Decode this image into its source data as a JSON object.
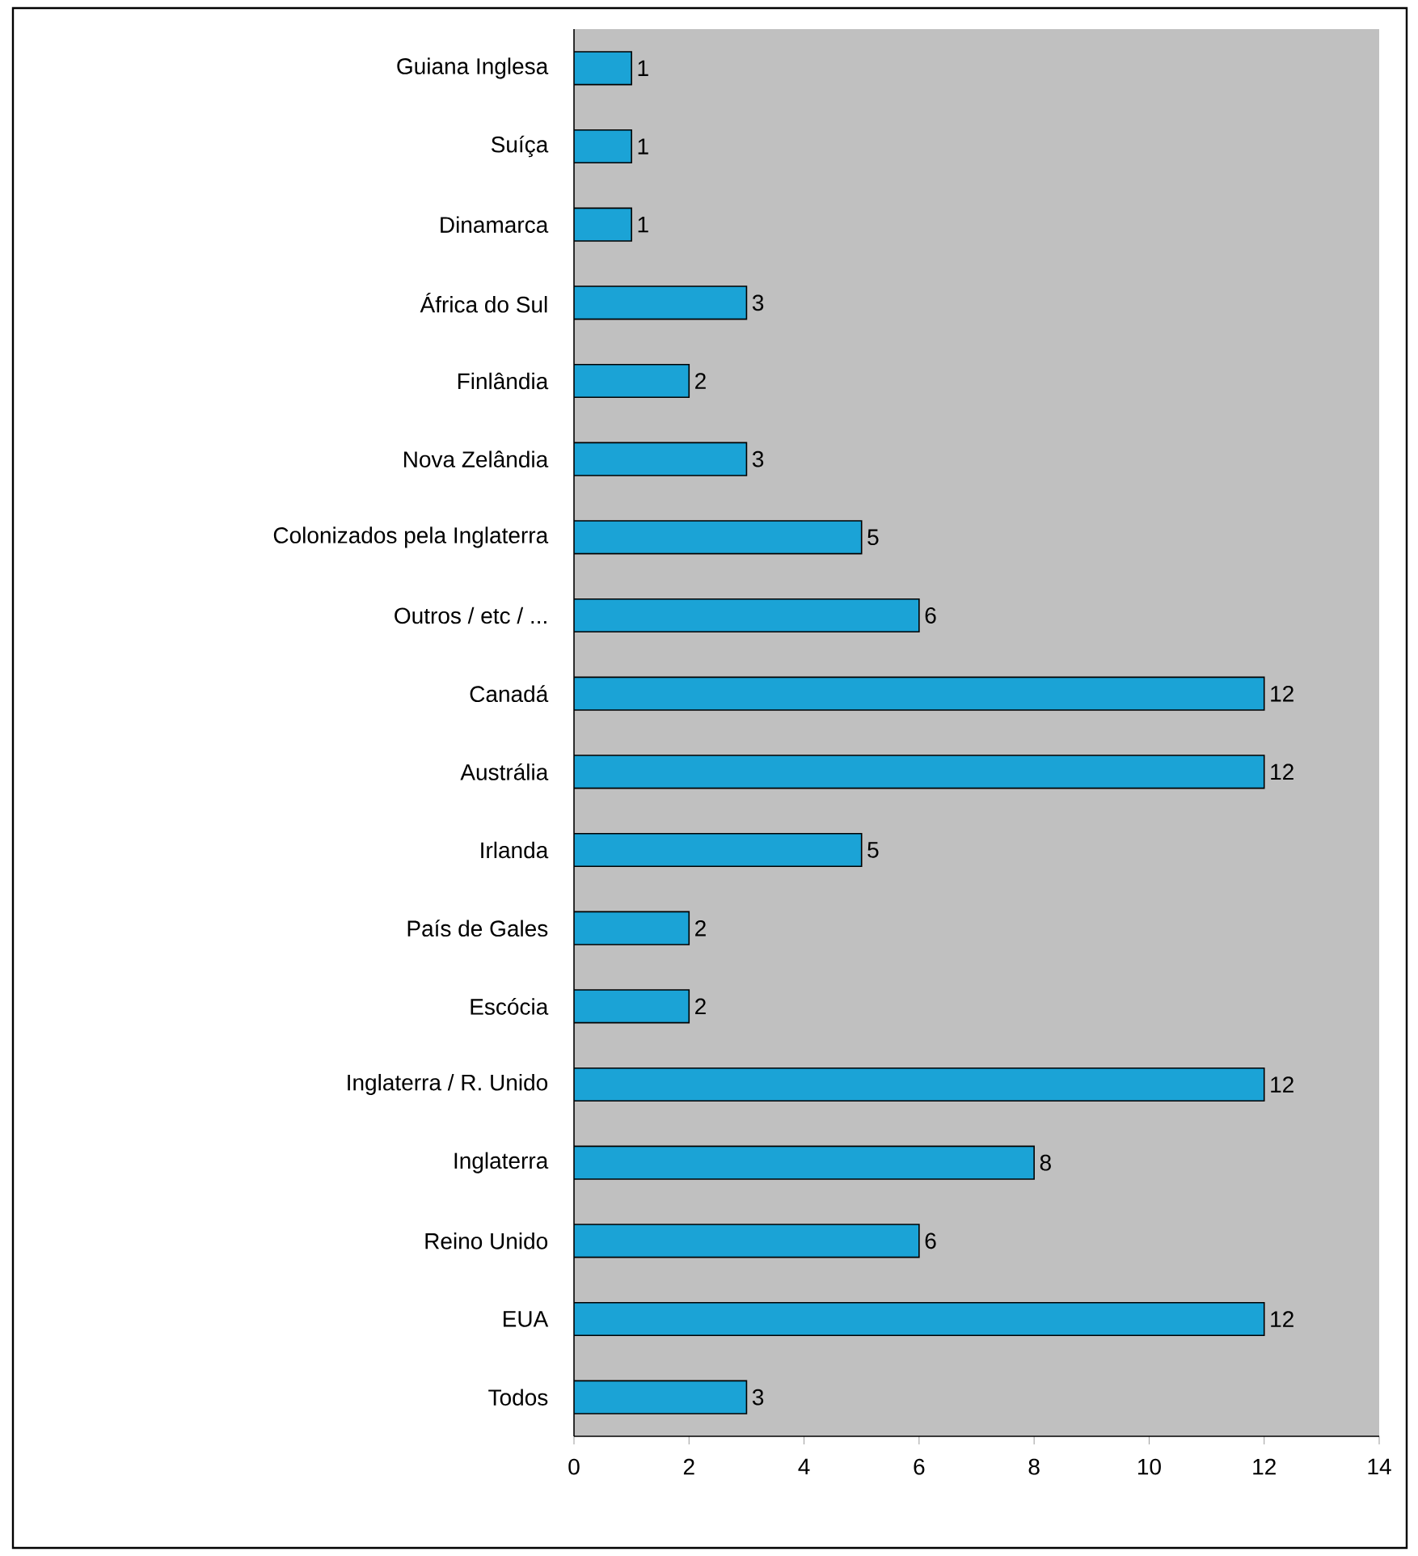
{
  "chart_data": {
    "type": "bar",
    "orientation": "horizontal",
    "categories": [
      "Guiana Inglesa",
      "Suíça",
      "Dinamarca",
      "África do Sul",
      "Finlândia",
      "Nova Zelândia",
      "Colonizados pela Inglaterra",
      "Outros / etc / ...",
      "Canadá",
      "Austrália",
      "Irlanda",
      "País de Gales",
      "Escócia",
      "Inglaterra / R. Unido",
      "Inglaterra",
      "Reino Unido",
      "EUA",
      "Todos"
    ],
    "values": [
      1,
      1,
      1,
      3,
      2,
      3,
      5,
      6,
      12,
      12,
      5,
      2,
      2,
      12,
      8,
      6,
      12,
      3
    ],
    "color": "#1ba3d6",
    "xlim": [
      0,
      14
    ],
    "xticks": [
      0,
      2,
      4,
      6,
      8,
      10,
      12,
      14
    ],
    "data_labels": true
  }
}
